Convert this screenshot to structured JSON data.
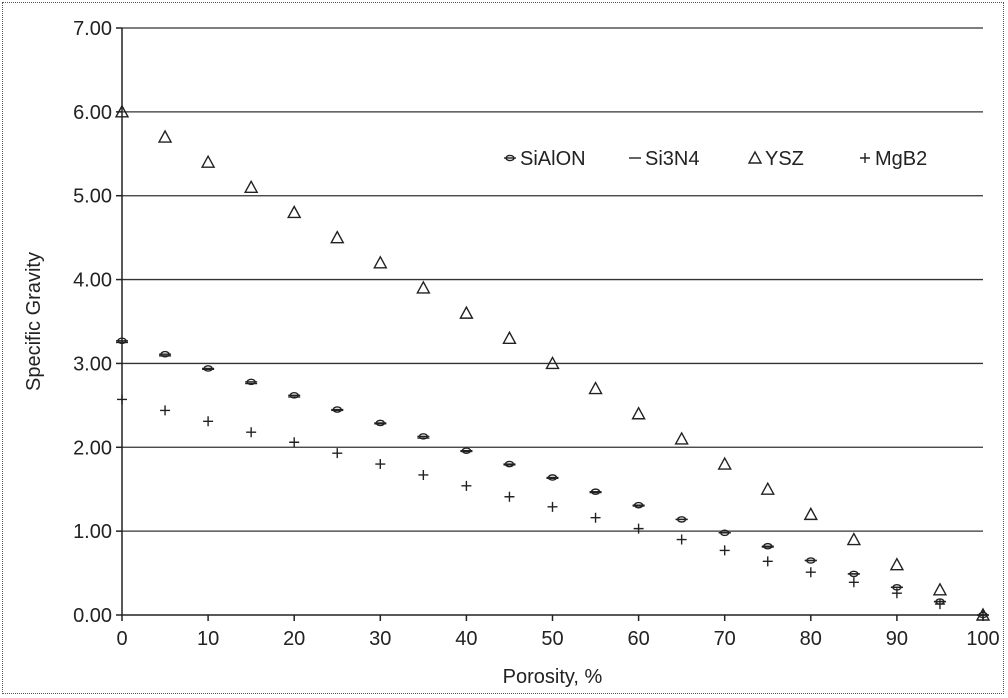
{
  "chart_data": {
    "type": "scatter",
    "title": "",
    "xlabel": "Porosity, %",
    "ylabel": "Specific Gravity",
    "xlim": [
      0,
      100
    ],
    "ylim": [
      0,
      7
    ],
    "x_ticks": [
      "0",
      "10",
      "20",
      "30",
      "40",
      "50",
      "60",
      "70",
      "80",
      "90",
      "100"
    ],
    "y_ticks": [
      "0.00",
      "1.00",
      "2.00",
      "3.00",
      "4.00",
      "5.00",
      "6.00",
      "7.00"
    ],
    "grid": "horizontal",
    "legend_position": "top-right",
    "x": [
      0,
      5,
      10,
      15,
      20,
      25,
      30,
      35,
      40,
      45,
      50,
      55,
      60,
      65,
      70,
      75,
      80,
      85,
      90,
      95,
      100
    ],
    "series": [
      {
        "name": "SiAlON",
        "marker": "circle-dash",
        "color": "#222222",
        "values": [
          3.27,
          3.11,
          2.94,
          2.78,
          2.62,
          2.45,
          2.29,
          2.13,
          1.96,
          1.8,
          1.64,
          1.47,
          1.31,
          1.14,
          0.98,
          0.82,
          0.65,
          0.49,
          0.33,
          0.16,
          0.0
        ]
      },
      {
        "name": "Si3N4",
        "marker": "dash",
        "color": "#222222",
        "values": [
          3.25,
          3.09,
          2.93,
          2.76,
          2.6,
          2.44,
          2.28,
          2.11,
          1.95,
          1.79,
          1.63,
          1.46,
          1.3,
          1.14,
          0.98,
          0.81,
          0.65,
          0.49,
          0.33,
          0.16,
          0.0
        ]
      },
      {
        "name": "YSZ",
        "marker": "triangle",
        "color": "#222222",
        "values": [
          6.0,
          5.7,
          5.4,
          5.1,
          4.8,
          4.5,
          4.2,
          3.9,
          3.6,
          3.3,
          3.0,
          2.7,
          2.4,
          2.1,
          1.8,
          1.5,
          1.2,
          0.9,
          0.6,
          0.3,
          0.0
        ]
      },
      {
        "name": "MgB2",
        "marker": "plus",
        "color": "#222222",
        "values": [
          2.57,
          2.44,
          2.31,
          2.18,
          2.06,
          1.93,
          1.8,
          1.67,
          1.54,
          1.41,
          1.29,
          1.16,
          1.03,
          0.9,
          0.77,
          0.64,
          0.51,
          0.39,
          0.26,
          0.13,
          0.0
        ]
      }
    ]
  }
}
